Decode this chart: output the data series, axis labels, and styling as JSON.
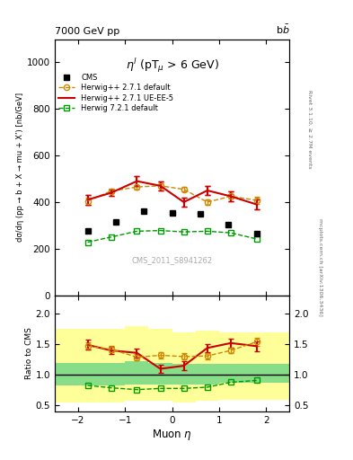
{
  "title_top": "7000 GeV pp",
  "title_right": "b$\\bar{b}$",
  "annotation": "$\\eta^l$ (pT$_\\mu$ > 6 GeV)",
  "watermark": "CMS_2011_S8941262",
  "rivet_label": "Rivet 3.1.10, ≥ 2.7M events",
  "mcplots_label": "mcplots.cern.ch [arXiv:1306.3436]",
  "ylabel_main": "dσ/dη (pp → b + X → mu + X’) [nb/GeV]",
  "ylabel_ratio": "Ratio to CMS",
  "xlabel": "Muon $\\eta$",
  "xlim": [
    -2.5,
    2.5
  ],
  "ylim_main": [
    0,
    1100
  ],
  "ylim_ratio": [
    0.4,
    2.3
  ],
  "yticks_main": [
    0,
    200,
    400,
    600,
    800,
    1000
  ],
  "yticks_ratio": [
    0.5,
    1.0,
    1.5,
    2.0
  ],
  "cms_x": [
    -1.8,
    -1.2,
    -0.6,
    0.0,
    0.6,
    1.2,
    1.8
  ],
  "cms_y": [
    275,
    315,
    360,
    355,
    350,
    305,
    265
  ],
  "herwig271_x": [
    -1.8,
    -1.3,
    -0.75,
    -0.25,
    0.25,
    0.75,
    1.25,
    1.8
  ],
  "herwig271_y": [
    405,
    447,
    465,
    470,
    455,
    400,
    425,
    408
  ],
  "herwig271_yerr": [
    15,
    10,
    10,
    10,
    10,
    10,
    10,
    15
  ],
  "herwig271ue_x": [
    -1.8,
    -1.3,
    -0.75,
    -0.25,
    0.25,
    0.75,
    1.25,
    1.8
  ],
  "herwig271ue_y": [
    410,
    440,
    490,
    470,
    400,
    450,
    425,
    390
  ],
  "herwig271ue_yerr": [
    20,
    15,
    20,
    20,
    20,
    20,
    20,
    20
  ],
  "herwig721_x": [
    -1.8,
    -1.3,
    -0.75,
    -0.25,
    0.25,
    0.75,
    1.25,
    1.8
  ],
  "herwig721_y": [
    228,
    250,
    275,
    278,
    272,
    275,
    268,
    242
  ],
  "ratio_herwig271_x": [
    -1.8,
    -1.3,
    -0.75,
    -0.25,
    0.25,
    0.75,
    1.25,
    1.8
  ],
  "ratio_herwig271_y": [
    1.47,
    1.42,
    1.29,
    1.32,
    1.3,
    1.31,
    1.4,
    1.54
  ],
  "ratio_herwig271_yerr": [
    0.06,
    0.05,
    0.05,
    0.05,
    0.05,
    0.05,
    0.05,
    0.06
  ],
  "ratio_herwig271ue_x": [
    -1.8,
    -1.3,
    -0.75,
    -0.25,
    0.25,
    0.75,
    1.25,
    1.8
  ],
  "ratio_herwig271ue_y": [
    1.49,
    1.4,
    1.36,
    1.1,
    1.15,
    1.44,
    1.52,
    1.47
  ],
  "ratio_herwig271ue_yerr": [
    0.08,
    0.06,
    0.07,
    0.07,
    0.07,
    0.07,
    0.07,
    0.08
  ],
  "ratio_herwig721_x": [
    -1.8,
    -1.3,
    -0.75,
    -0.25,
    0.25,
    0.75,
    1.25,
    1.8
  ],
  "ratio_herwig721_y": [
    0.83,
    0.79,
    0.76,
    0.78,
    0.78,
    0.8,
    0.88,
    0.91
  ],
  "band_yellow_edges": [
    -2.5,
    -1.5,
    -1.0,
    -0.5,
    0.0,
    0.5,
    1.0,
    1.5,
    2.5
  ],
  "band_yellow_lo": [
    0.55,
    0.55,
    0.58,
    0.58,
    0.55,
    0.58,
    0.6,
    0.6
  ],
  "band_yellow_hi": [
    1.75,
    1.75,
    1.8,
    1.75,
    1.7,
    1.72,
    1.7,
    1.7
  ],
  "band_green_edges": [
    -2.5,
    -1.5,
    -1.0,
    -0.5,
    0.0,
    0.5,
    1.0,
    1.5,
    2.5
  ],
  "band_green_lo": [
    0.83,
    0.83,
    0.85,
    0.85,
    0.85,
    0.85,
    0.87,
    0.87
  ],
  "band_green_hi": [
    1.2,
    1.2,
    1.22,
    1.2,
    1.18,
    1.18,
    1.18,
    1.18
  ],
  "color_herwig271": "#cc8800",
  "color_herwig271ue": "#cc0000",
  "color_herwig721": "#009900",
  "color_cms": "#000000",
  "color_band_yellow": "#ffff99",
  "color_band_green": "#88dd88"
}
